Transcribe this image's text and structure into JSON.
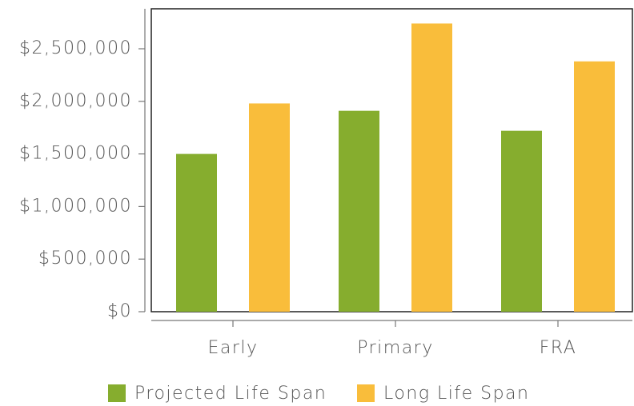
{
  "chart_data": {
    "type": "bar",
    "categories": [
      "Early",
      "Primary",
      "FRA"
    ],
    "series": [
      {
        "name": "Projected Life Span",
        "color": "#86ad2e",
        "values": [
          1500000,
          1910000,
          1720000
        ]
      },
      {
        "name": "Long Life Span",
        "color": "#f9bd3b",
        "values": [
          1980000,
          2740000,
          2380000
        ]
      }
    ],
    "ylim": [
      0,
      2880000
    ],
    "yticks": [
      {
        "value": 0,
        "label": "$0"
      },
      {
        "value": 500000,
        "label": "$500,000"
      },
      {
        "value": 1000000,
        "label": "$1,000,000"
      },
      {
        "value": 1500000,
        "label": "$1,500,000"
      },
      {
        "value": 2000000,
        "label": "$2,000,000"
      },
      {
        "value": 2500000,
        "label": "$2,500,000"
      }
    ],
    "legend": "bottom"
  }
}
